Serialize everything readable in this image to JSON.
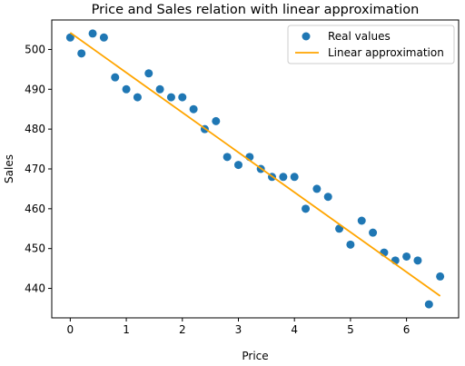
{
  "chart_data": {
    "type": "scatter",
    "title": "Price and Sales relation with linear approximation",
    "xlabel": "Price",
    "ylabel": "Sales",
    "xlim": [
      -0.33,
      6.93
    ],
    "ylim": [
      432.6,
      507.4
    ],
    "xticks": [
      0,
      1,
      2,
      3,
      4,
      5,
      6
    ],
    "yticks": [
      440,
      450,
      460,
      470,
      480,
      490,
      500
    ],
    "grid": false,
    "legend_position": "top-right",
    "series": [
      {
        "name": "Real values",
        "kind": "scatter",
        "color": "#1f77b4",
        "x": [
          0.0,
          0.2,
          0.4,
          0.6,
          0.8,
          1.0,
          1.2,
          1.4,
          1.6,
          1.8,
          2.0,
          2.2,
          2.4,
          2.6,
          2.8,
          3.0,
          3.2,
          3.4,
          3.6,
          3.8,
          4.0,
          4.2,
          4.4,
          4.6,
          4.8,
          5.0,
          5.2,
          5.4,
          5.6,
          5.8,
          6.0,
          6.2,
          6.4,
          6.6
        ],
        "y": [
          503,
          499,
          504,
          503,
          493,
          490,
          488,
          494,
          490,
          488,
          488,
          485,
          480,
          482,
          473,
          471,
          473,
          470,
          468,
          468,
          468,
          460,
          465,
          463,
          455,
          451,
          457,
          454,
          449,
          447,
          448,
          447,
          436,
          443
        ]
      },
      {
        "name": "Linear approximation",
        "kind": "line",
        "color": "#ffa500",
        "x": [
          0.0,
          6.6
        ],
        "y": [
          504.2,
          438.1
        ]
      }
    ]
  }
}
